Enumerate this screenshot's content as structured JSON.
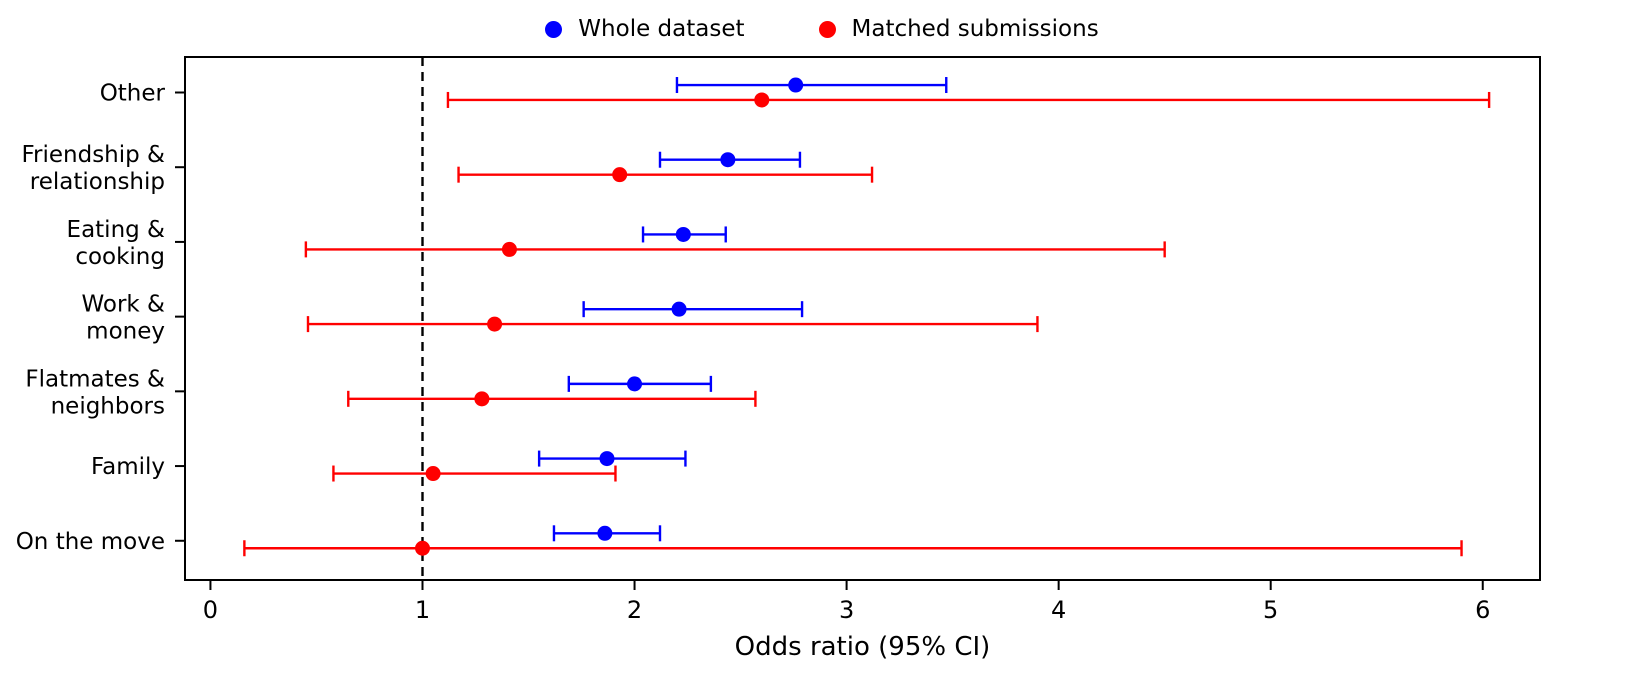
{
  "legend": {
    "items": [
      {
        "label": "Whole dataset",
        "color": "#0000ff"
      },
      {
        "label": "Matched submissions",
        "color": "#ff0000"
      }
    ]
  },
  "chart_data": {
    "type": "scatter",
    "subtype": "forest-plot-odds-ratios-with-95ci-error-bars",
    "title": "",
    "xlabel": "Odds ratio (95% CI)",
    "ylabel": "",
    "xticks": [
      0,
      1,
      2,
      3,
      4,
      5,
      6
    ],
    "xlim": [
      -0.12,
      6.27
    ],
    "grid": false,
    "legend_position": "top-center",
    "reference_line": {
      "x": 1,
      "style": "dashed",
      "color": "#000000"
    },
    "categories": [
      {
        "label_lines": [
          "Other"
        ]
      },
      {
        "label_lines": [
          "Friendship &",
          "relationship"
        ]
      },
      {
        "label_lines": [
          "Eating &",
          "cooking"
        ]
      },
      {
        "label_lines": [
          "Work &",
          "money"
        ]
      },
      {
        "label_lines": [
          "Flatmates &",
          "neighbors"
        ]
      },
      {
        "label_lines": [
          "Family"
        ]
      },
      {
        "label_lines": [
          "On the move"
        ]
      }
    ],
    "series": [
      {
        "name": "Whole dataset",
        "color": "#0000ff",
        "points": [
          {
            "category": "Other",
            "or": 2.76,
            "ci_low": 2.2,
            "ci_high": 3.47
          },
          {
            "category": "Friendship & relationship",
            "or": 2.44,
            "ci_low": 2.12,
            "ci_high": 2.78
          },
          {
            "category": "Eating & cooking",
            "or": 2.23,
            "ci_low": 2.04,
            "ci_high": 2.43
          },
          {
            "category": "Work & money",
            "or": 2.21,
            "ci_low": 1.76,
            "ci_high": 2.79
          },
          {
            "category": "Flatmates & neighbors",
            "or": 2.0,
            "ci_low": 1.69,
            "ci_high": 2.36
          },
          {
            "category": "Family",
            "or": 1.87,
            "ci_low": 1.55,
            "ci_high": 2.24
          },
          {
            "category": "On the move",
            "or": 1.86,
            "ci_low": 1.62,
            "ci_high": 2.12
          }
        ]
      },
      {
        "name": "Matched submissions",
        "color": "#ff0000",
        "points": [
          {
            "category": "Other",
            "or": 2.6,
            "ci_low": 1.12,
            "ci_high": 6.03
          },
          {
            "category": "Friendship & relationship",
            "or": 1.93,
            "ci_low": 1.17,
            "ci_high": 3.12
          },
          {
            "category": "Eating & cooking",
            "or": 1.41,
            "ci_low": 0.45,
            "ci_high": 4.5
          },
          {
            "category": "Work & money",
            "or": 1.34,
            "ci_low": 0.46,
            "ci_high": 3.9
          },
          {
            "category": "Flatmates & neighbors",
            "or": 1.28,
            "ci_low": 0.65,
            "ci_high": 2.57
          },
          {
            "category": "Family",
            "or": 1.05,
            "ci_low": 0.58,
            "ci_high": 1.91
          },
          {
            "category": "On the move",
            "or": 1.0,
            "ci_low": 0.16,
            "ci_high": 5.9
          }
        ]
      }
    ]
  }
}
